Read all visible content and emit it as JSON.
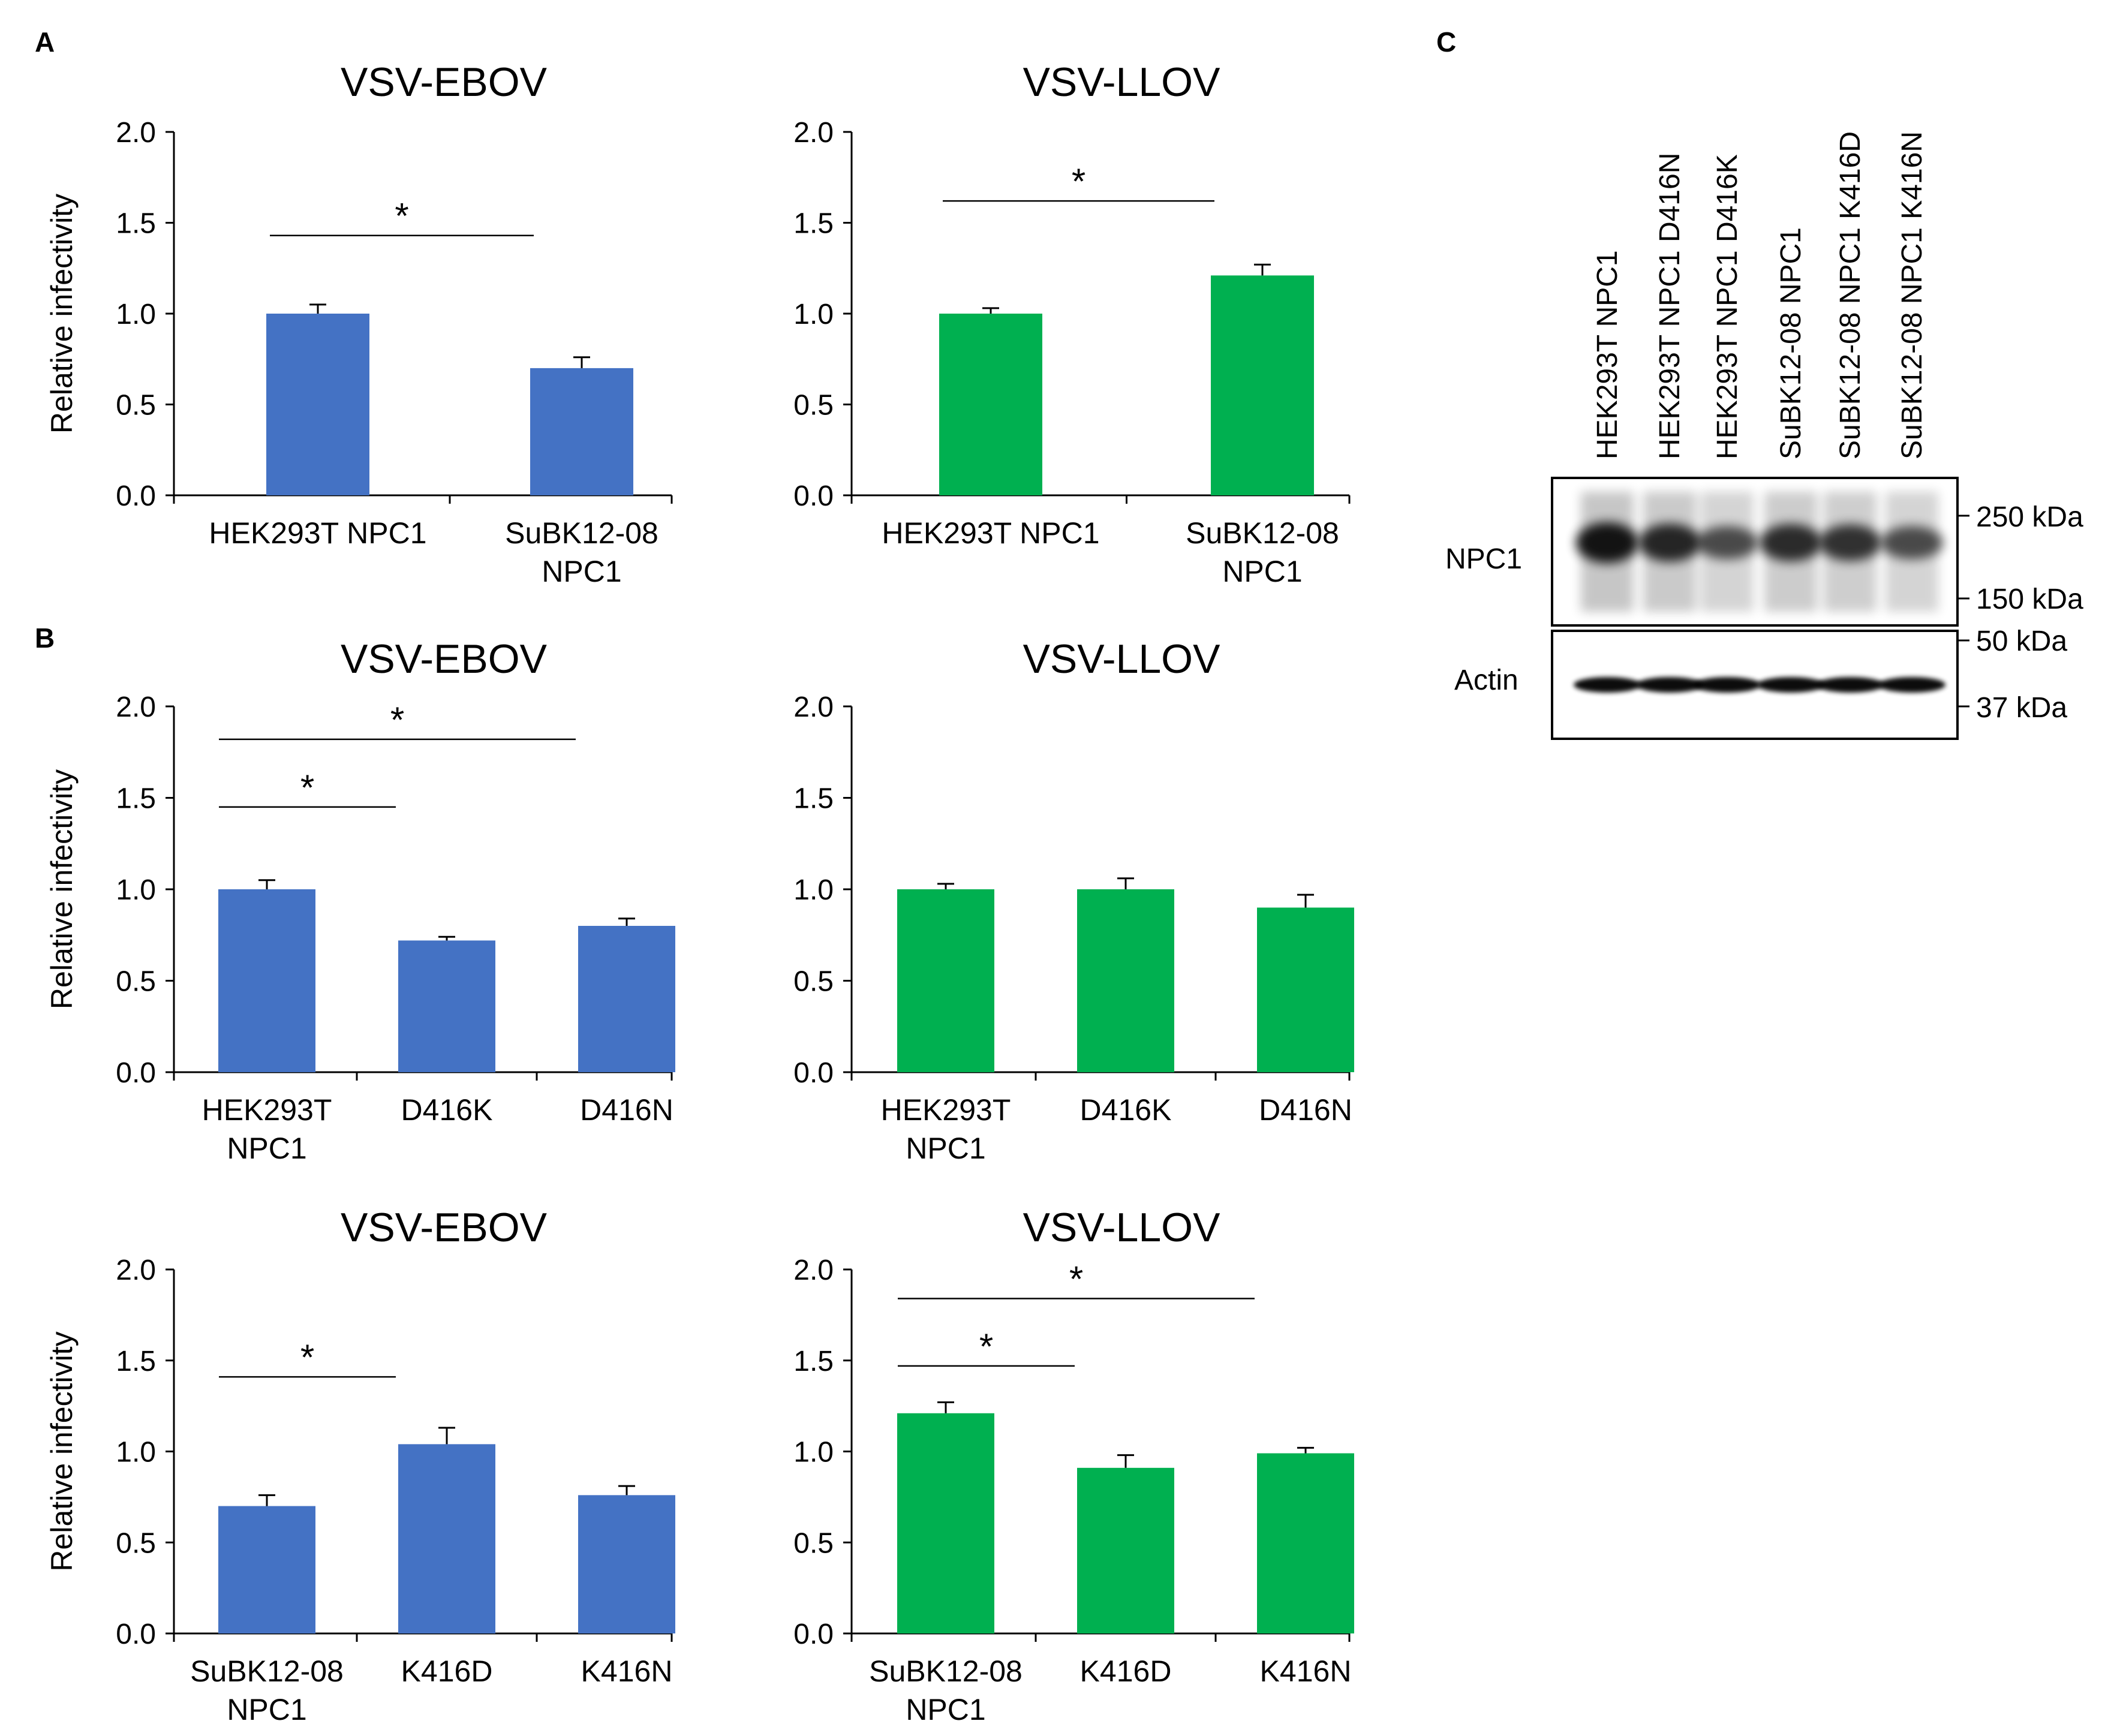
{
  "panel_labels": {
    "a": "A",
    "b": "B",
    "c": "C"
  },
  "colors": {
    "ebov": "#4472c4",
    "llov": "#00b050",
    "axis": "#000000"
  },
  "chart_data": [
    {
      "id": "A1",
      "type": "bar",
      "title": "VSV-EBOV",
      "ylabel": "Relative infectivity",
      "ylim": [
        0,
        2.0
      ],
      "yticks": [
        "0.0",
        "0.5",
        "1.0",
        "1.5",
        "2.0"
      ],
      "color": "ebov",
      "categories": [
        [
          "HEK293T NPC1"
        ],
        [
          "SuBK12-08",
          "NPC1"
        ]
      ],
      "values": [
        1.0,
        0.7
      ],
      "errors": [
        0.05,
        0.06
      ],
      "significance": [
        {
          "from": 0,
          "to": 1,
          "label": "*",
          "level": 1.43
        }
      ]
    },
    {
      "id": "A2",
      "type": "bar",
      "title": "VSV-LLOV",
      "ylabel": "",
      "ylim": [
        0,
        2.0
      ],
      "yticks": [
        "0.0",
        "0.5",
        "1.0",
        "1.5",
        "2.0"
      ],
      "color": "llov",
      "categories": [
        [
          "HEK293T NPC1"
        ],
        [
          "SuBK12-08",
          "NPC1"
        ]
      ],
      "values": [
        1.0,
        1.21
      ],
      "errors": [
        0.03,
        0.06
      ],
      "significance": [
        {
          "from": 0,
          "to": 1,
          "label": "*",
          "level": 1.62
        }
      ]
    },
    {
      "id": "B1",
      "type": "bar",
      "title": "VSV-EBOV",
      "ylabel": "Relative infectivity",
      "ylim": [
        0,
        2.0
      ],
      "yticks": [
        "0.0",
        "0.5",
        "1.0",
        "1.5",
        "2.0"
      ],
      "color": "ebov",
      "categories": [
        [
          "HEK293T",
          "NPC1"
        ],
        [
          "D416K"
        ],
        [
          "D416N"
        ]
      ],
      "values": [
        1.0,
        0.72,
        0.8
      ],
      "errors": [
        0.05,
        0.02,
        0.04
      ],
      "significance": [
        {
          "from": 0,
          "to": 1,
          "label": "*",
          "level": 1.45
        },
        {
          "from": 0,
          "to": 2,
          "label": "*",
          "level": 1.82
        }
      ]
    },
    {
      "id": "B2",
      "type": "bar",
      "title": "VSV-LLOV",
      "ylabel": "",
      "ylim": [
        0,
        2.0
      ],
      "yticks": [
        "0.0",
        "0.5",
        "1.0",
        "1.5",
        "2.0"
      ],
      "color": "llov",
      "categories": [
        [
          "HEK293T",
          "NPC1"
        ],
        [
          "D416K"
        ],
        [
          "D416N"
        ]
      ],
      "values": [
        1.0,
        1.0,
        0.9
      ],
      "errors": [
        0.03,
        0.06,
        0.07
      ],
      "significance": []
    },
    {
      "id": "B3",
      "type": "bar",
      "title": "VSV-EBOV",
      "ylabel": "Relative infectivity",
      "ylim": [
        0,
        2.0
      ],
      "yticks": [
        "0.0",
        "0.5",
        "1.0",
        "1.5",
        "2.0"
      ],
      "color": "ebov",
      "categories": [
        [
          "SuBK12-08",
          "NPC1"
        ],
        [
          "K416D"
        ],
        [
          "K416N"
        ]
      ],
      "values": [
        0.7,
        1.04,
        0.76
      ],
      "errors": [
        0.06,
        0.09,
        0.05
      ],
      "significance": [
        {
          "from": 0,
          "to": 1,
          "label": "*",
          "level": 1.41
        }
      ]
    },
    {
      "id": "B4",
      "type": "bar",
      "title": "VSV-LLOV",
      "ylabel": "",
      "ylim": [
        0,
        2.0
      ],
      "yticks": [
        "0.0",
        "0.5",
        "1.0",
        "1.5",
        "2.0"
      ],
      "color": "llov",
      "categories": [
        [
          "SuBK12-08",
          "NPC1"
        ],
        [
          "K416D"
        ],
        [
          "K416N"
        ]
      ],
      "values": [
        1.21,
        0.91,
        0.99
      ],
      "errors": [
        0.06,
        0.07,
        0.03
      ],
      "significance": [
        {
          "from": 0,
          "to": 1,
          "label": "*",
          "level": 1.47
        },
        {
          "from": 0,
          "to": 2,
          "label": "*",
          "level": 1.84
        }
      ]
    }
  ],
  "blot": {
    "lanes": [
      "HEK293T NPC1",
      "HEK293T NPC1 D416N",
      "HEK293T NPC1 D416K",
      "SuBK12-08 NPC1",
      "SuBK12-08 NPC1 K416D",
      "SuBK12-08 NPC1 K416N"
    ],
    "npc1_label": "NPC1",
    "actin_label": "Actin",
    "npc1_markers": [
      "250 kDa",
      "150 kDa"
    ],
    "actin_markers": [
      "50 kDa",
      "37 kDa"
    ]
  }
}
